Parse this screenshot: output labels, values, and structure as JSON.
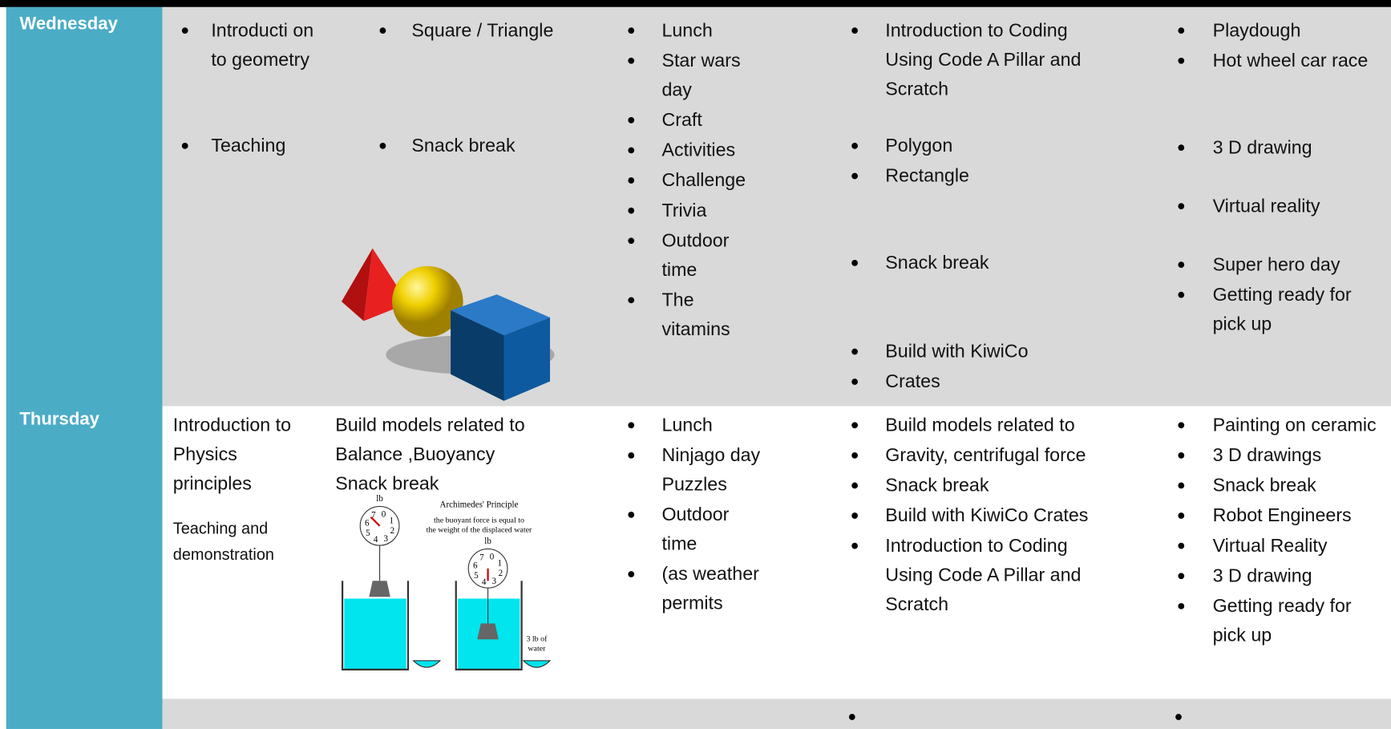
{
  "table": {
    "rows": [
      {
        "day": "Wednesday",
        "cells": [
          {
            "bullets": [
              "Introducti on to geometry",
              "Teaching"
            ]
          },
          {
            "bullets": [
              "Square / Triangle",
              "Snack break"
            ]
          },
          {
            "bullets": [
              " Lunch",
              "Star wars day",
              "Craft",
              "Activities",
              "Challenge",
              "Trivia",
              "Outdoor time",
              "The vitamins"
            ]
          },
          {
            "bullets": [
              "Introduction to Coding Using Code A Pillar and Scratch",
              "Polygon",
              "Rectangle",
              "Snack break",
              "Build with KiwiCo",
              "Crates"
            ]
          },
          {
            "bullets": [
              "Playdough",
              "Hot wheel car race",
              "3 D drawing",
              "Virtual reality",
              "Super hero day",
              "Getting ready for pick up"
            ]
          }
        ]
      },
      {
        "day": "Thursday",
        "cells": [
          {
            "lines": [
              "Introduction to Physics principles",
              "Teaching and demonstration"
            ]
          },
          {
            "lines": [
              "Build models related to",
              "Balance ,Buoyancy",
              "Snack break"
            ]
          },
          {
            "bullets": [
              "Lunch",
              "Ninjago day Puzzles",
              "Outdoor time",
              "(as weather permits"
            ]
          },
          {
            "bullets": [
              "Build models  related to",
              "Gravity, centrifugal force",
              "Snack break",
              "Build with KiwiCo Crates",
              "Introduction to Coding Using Code A Pillar and Scratch"
            ]
          },
          {
            "bullets": [
              "Painting on ceramic",
              "3 D drawings",
              "Snack break",
              "Robot Engineers",
              "Virtual Reality",
              "3 D drawing",
              "Getting ready for pick up"
            ]
          }
        ]
      }
    ]
  },
  "diagram": {
    "title": "Archimedes' Principle",
    "caption": [
      "the buoyant force is equal to",
      "the weight of the displaced water"
    ],
    "unit": "lb",
    "dial": [
      "7",
      "0",
      "1",
      "2",
      "3",
      "4",
      "5",
      "6"
    ],
    "weight": [
      "3 lb of",
      "water"
    ]
  }
}
